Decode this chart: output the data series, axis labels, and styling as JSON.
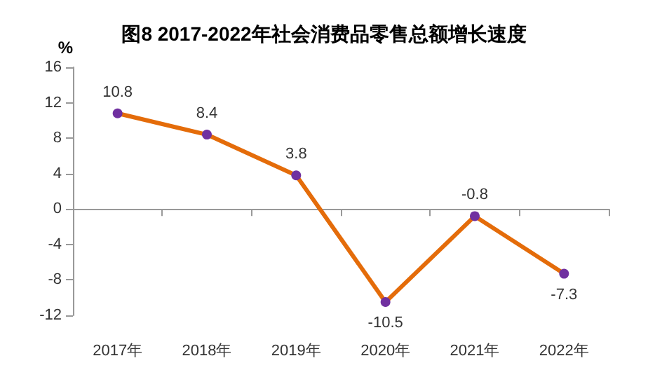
{
  "chart_data": {
    "type": "line",
    "title": "图8 2017-2022年社会消费品零售总额增长速度",
    "ylabel": "%",
    "categories": [
      "2017年",
      "2018年",
      "2019年",
      "2020年",
      "2021年",
      "2022年"
    ],
    "series": [
      {
        "color": "#e46c0a",
        "colors": [
          "#7030a0",
          "#7030a0",
          "#7030a0",
          "#7030a0",
          "#7030a0",
          "#7030a0"
        ],
        "values": [
          10.8,
          8.4,
          3.8,
          -10.5,
          -0.8,
          -7.3
        ]
      }
    ],
    "ylim": [
      -12,
      16
    ],
    "yticks": [
      -12,
      -8,
      -4,
      0,
      4,
      8,
      12,
      16
    ],
    "marker": "circle",
    "line_style": "solid",
    "data_labels": true
  }
}
